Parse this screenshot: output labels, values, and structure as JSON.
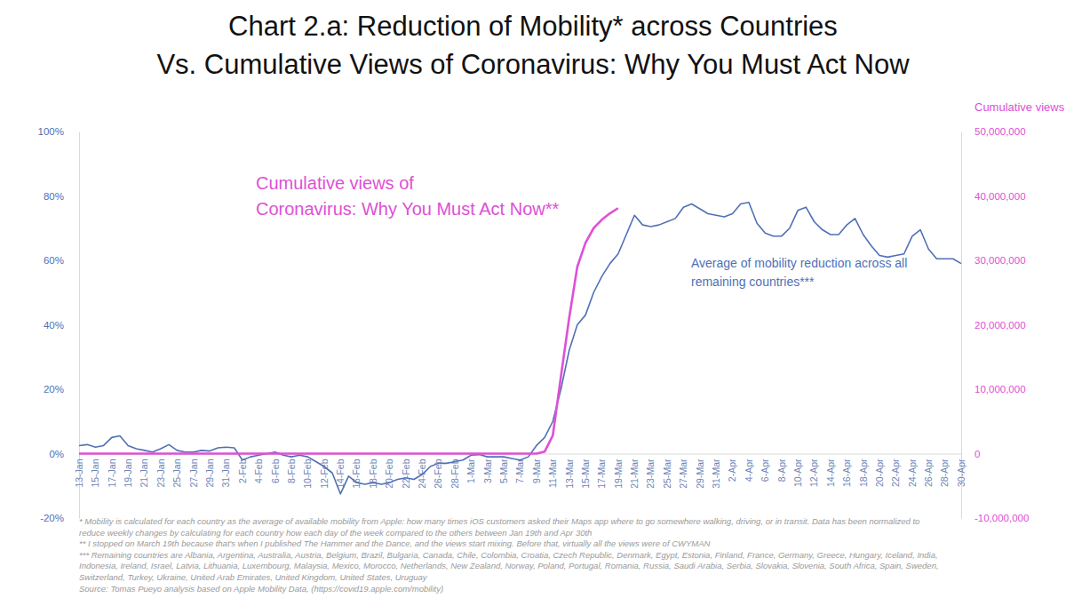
{
  "chart_data": {
    "type": "line",
    "title": [
      "Chart 2.a: Reduction of Mobility* across Countries",
      "Vs. Cumulative Views of Coronavirus: Why You Must Act Now"
    ],
    "y2_label": "Cumulative views",
    "categories": [
      "13-Jan",
      null,
      "15-Jan",
      null,
      "17-Jan",
      null,
      "19-Jan",
      null,
      "21-Jan",
      null,
      "23-Jan",
      null,
      "25-Jan",
      null,
      "27-Jan",
      null,
      "29-Jan",
      null,
      "31-Jan",
      null,
      "2-Feb",
      null,
      "4-Feb",
      null,
      "6-Feb",
      null,
      "8-Feb",
      null,
      "10-Feb",
      null,
      "12-Feb",
      null,
      "14-Feb",
      null,
      "16-Feb",
      null,
      "18-Feb",
      null,
      "20-Feb",
      null,
      "22-Feb",
      null,
      "24-Feb",
      null,
      "26-Feb",
      null,
      "28-Feb",
      null,
      "1-Mar",
      null,
      "3-Mar",
      null,
      "5-Mar",
      null,
      "7-Mar",
      null,
      "9-Mar",
      null,
      "11-Mar",
      null,
      "13-Mar",
      null,
      "15-Mar",
      null,
      "17-Mar",
      null,
      "19-Mar",
      null,
      "21-Mar",
      null,
      "23-Mar",
      null,
      "25-Mar",
      null,
      "27-Mar",
      null,
      "29-Mar",
      null,
      "31-Mar",
      null,
      "2-Apr",
      null,
      "4-Apr",
      null,
      "6-Apr",
      null,
      "8-Apr",
      null,
      "10-Apr",
      null,
      "12-Apr",
      null,
      "14-Apr",
      null,
      "16-Apr",
      null,
      "18-Apr",
      null,
      "20-Apr",
      null,
      "22-Apr",
      null,
      "24-Apr",
      null,
      "26-Apr",
      null,
      "28-Apr",
      null,
      "30-Apr"
    ],
    "series": [
      {
        "color": "#5070b6",
        "values": [
          2.5,
          2.8,
          2,
          2.5,
          5,
          5.5,
          2.5,
          1.5,
          1,
          0.5,
          1.5,
          2.8,
          1,
          0.5,
          0.5,
          1,
          0.8,
          1.8,
          2,
          1.8,
          -2,
          -1,
          -0.5,
          0,
          0.5,
          -0.5,
          -1,
          -0.5,
          -1,
          -2.5,
          -4,
          -6,
          -12.5,
          -7,
          -9,
          -9.5,
          -9,
          -9.5,
          -9,
          -8,
          -7.5,
          -8,
          -6.5,
          -4,
          -3,
          -3,
          -2.5,
          -2,
          -0.5,
          -0.3,
          -1,
          -1,
          -1,
          -1.5,
          -2,
          -1,
          2.5,
          5,
          10,
          20,
          32,
          40,
          43,
          50,
          55,
          59,
          62,
          68,
          74,
          71,
          70.5,
          71,
          72,
          73,
          76.5,
          77.5,
          76,
          74.5,
          74,
          73.5,
          74.5,
          77.5,
          78,
          71.5,
          68.5,
          67.5,
          67.5,
          70,
          75.5,
          76.5,
          72,
          69.5,
          68,
          68,
          71,
          73,
          68,
          64.5,
          61.5,
          61,
          61.5,
          62,
          67.5,
          69.5,
          63.5,
          60.5,
          60.5,
          60.5,
          59
        ]
      },
      {
        "color": "#de50d6",
        "axis": "y2",
        "values": [
          0,
          0,
          0,
          0,
          0,
          0,
          0,
          0,
          0,
          0,
          0,
          0,
          0,
          0,
          0,
          0,
          0,
          0,
          0,
          0,
          0,
          0,
          0,
          0,
          0,
          0,
          0,
          0,
          0,
          0,
          0,
          0,
          0,
          0,
          0,
          0,
          0,
          0,
          0,
          0,
          0,
          0,
          0,
          0,
          0,
          0,
          0,
          0,
          0,
          0,
          0,
          0,
          0,
          0,
          0,
          0,
          0,
          300000,
          2800000,
          12000000,
          21000000,
          29000000,
          32700000,
          35000000,
          36300000,
          37300000,
          38100000,
          null,
          null,
          null,
          null,
          null,
          null,
          null,
          null,
          null,
          null,
          null,
          null,
          null,
          null,
          null,
          null,
          null,
          null,
          null,
          null,
          null,
          null,
          null,
          null,
          null,
          null,
          null,
          null,
          null,
          null,
          null,
          null,
          null,
          null,
          null,
          null,
          null,
          null,
          null,
          null,
          null,
          null
        ]
      }
    ],
    "ylim": [
      -20,
      100
    ],
    "yticks": [
      {
        "value": -20,
        "label": "-20%"
      },
      {
        "value": 0,
        "label": "0%"
      },
      {
        "value": 20,
        "label": "20%"
      },
      {
        "value": 40,
        "label": "40%"
      },
      {
        "value": 60,
        "label": "60%"
      },
      {
        "value": 80,
        "label": "80%"
      },
      {
        "value": 100,
        "label": "100%"
      }
    ],
    "y2lim": [
      -10000000,
      50000000
    ],
    "y2ticks": [
      {
        "value": -10000000,
        "label": "-10,000,000"
      },
      0,
      {
        "value": 10000000,
        "label": "10,000,000"
      },
      {
        "value": 20000000,
        "label": "20,000,000"
      },
      {
        "value": 30000000,
        "label": "30,000,000"
      },
      {
        "value": 40000000,
        "label": "40,000,000"
      },
      {
        "value": 50000000,
        "label": "50,000,000"
      }
    ],
    "grid": false,
    "annotations": [
      {
        "lines": [
          "Cumulative views of",
          "Coronavirus: Why You Must Act Now**"
        ],
        "color": "#de50d6"
      },
      {
        "lines": [
          "Average of mobility reduction across all",
          "remaining countries***"
        ],
        "color": "#5070b6"
      }
    ],
    "notes": [
      "* Mobility is calculated for each country as the average of available mobility from Apple: how many times iOS customers asked their Maps app where to go somewhere walking, driving, or in transit. Data has been normalized to",
      "reduce weekly changes by calculating for each country how each day of the week compared to the others between Jan 19th and Apr 30th",
      "** I stopped on March 19th because that's when I published The Hammer and the Dance, and the views start mixing. Before that, virtually all the views were of CWYMAN",
      "*** Remaining countries are Albania, Argentina, Australia, Austria, Belgium, Brazil, Bulgaria, Canada, Chile, Colombia, Croatia, Czech Republic, Denmark, Egypt, Estonia, Finland, France, Germany, Greece, Hungary, Iceland, India,",
      "Indonesia, Ireland, Israel, Latvia, Lithuania, Luxembourg, Malaysia, Mexico, Morocco, Netherlands, New Zealand, Norway, Poland, Portugal, Romania, Russia, Saudi Arabia, Serbia, Slovakia, Slovenia, South Africa, Spain, Sweden,",
      "Switzerland, Turkey, Ukraine, United Arab Emirates, United Kingdom, United States, Uruguay"
    ],
    "source": "Source: Tomas Pueyo analysis based on Apple Mobility Data, (https://covid19.apple.com/mobility)"
  }
}
